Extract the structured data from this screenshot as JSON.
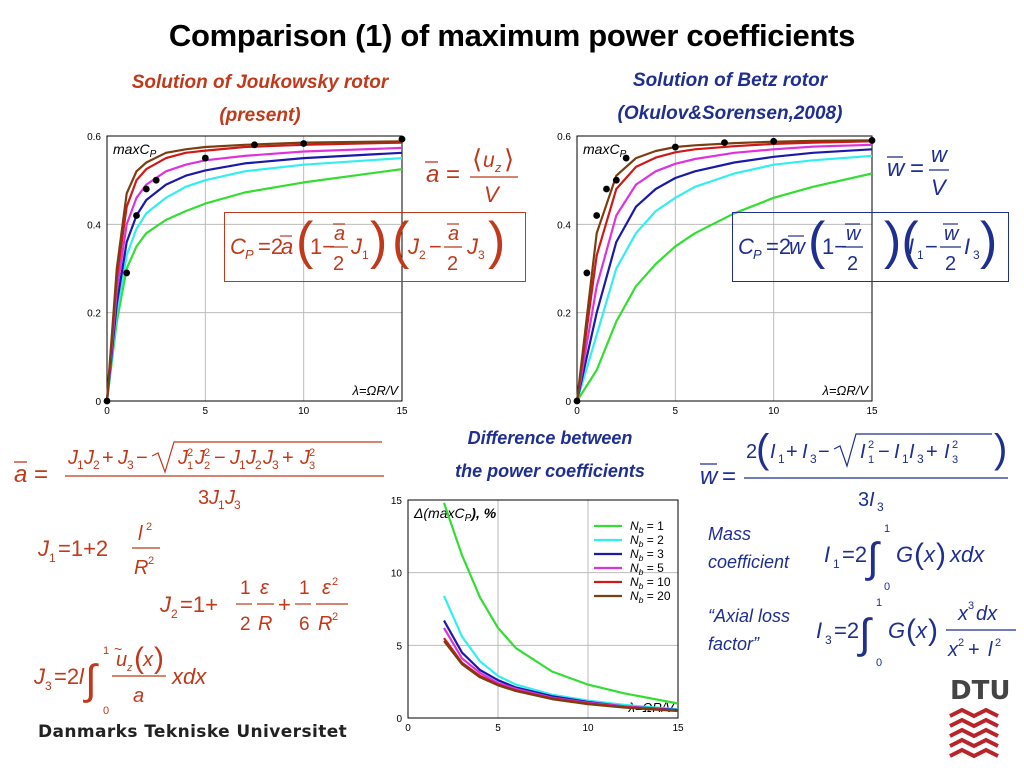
{
  "slide": {
    "title": "Comparison (1) of maximum power coefficients",
    "left_caption_line1": "Solution of Joukowsky rotor",
    "left_caption_line2": "(present)",
    "right_caption_line1": "Solution of Betz rotor",
    "right_caption_line2": "(Okulov&Sorensen,2008)",
    "diff_caption_line1": "Difference between",
    "diff_caption_line2": "the power coefficients",
    "mass_line1": "Mass",
    "mass_line2": "coefficient",
    "axial_line1": "“Axial loss",
    "axial_line2": "factor”",
    "university": "Danmarks Tekniske Universitet",
    "logo": "DTU"
  },
  "legend": [
    "N_b = 1",
    "N_b = 2",
    "N_b = 3",
    "N_b = 5",
    "N_b = 10",
    "N_b = 20"
  ],
  "colors": {
    "title": "#000000",
    "caption_red": "#c0391b",
    "caption_blue": "#1f2f8f",
    "formula_red": "#c0391b",
    "formula_blue": "#1f2f8f",
    "series": [
      "#33dd33",
      "#33eeee",
      "#1a1aaa",
      "#dd33dd",
      "#d01818",
      "#7a3f10"
    ]
  },
  "chart_data": [
    {
      "type": "line",
      "title": "Solution of Joukowsky rotor (present)",
      "inner_label": "maxC_P",
      "xlabel": "λ=ΩR/V",
      "xlim": [
        0,
        15
      ],
      "ylim": [
        0,
        0.6
      ],
      "xticks": [
        0,
        5,
        10,
        15
      ],
      "yticks": [
        0,
        0.2,
        0.4,
        0.6
      ],
      "grid": true,
      "legend_position": "bottom-right",
      "series": [
        {
          "name": "N_b = 1",
          "x": [
            0,
            0.5,
            1,
            1.5,
            2,
            3,
            4,
            5,
            7,
            10,
            15
          ],
          "y": [
            0,
            0.18,
            0.3,
            0.35,
            0.38,
            0.41,
            0.43,
            0.447,
            0.472,
            0.495,
            0.525
          ]
        },
        {
          "name": "N_b = 2",
          "x": [
            0,
            0.5,
            1,
            1.5,
            2,
            3,
            4,
            5,
            7,
            10,
            15
          ],
          "y": [
            0,
            0.2,
            0.33,
            0.39,
            0.425,
            0.46,
            0.485,
            0.5,
            0.52,
            0.535,
            0.55
          ]
        },
        {
          "name": "N_b = 3",
          "x": [
            0,
            0.5,
            1,
            1.5,
            2,
            3,
            4,
            5,
            7,
            10,
            15
          ],
          "y": [
            0,
            0.22,
            0.36,
            0.42,
            0.455,
            0.49,
            0.51,
            0.522,
            0.538,
            0.55,
            0.562
          ]
        },
        {
          "name": "N_b = 5",
          "x": [
            0,
            0.5,
            1,
            1.5,
            2,
            3,
            4,
            5,
            7,
            10,
            15
          ],
          "y": [
            0,
            0.25,
            0.4,
            0.46,
            0.49,
            0.52,
            0.535,
            0.545,
            0.555,
            0.565,
            0.573
          ]
        },
        {
          "name": "N_b = 10",
          "x": [
            0,
            0.5,
            1,
            1.5,
            2,
            3,
            4,
            5,
            7,
            10,
            15
          ],
          "y": [
            0,
            0.28,
            0.44,
            0.5,
            0.525,
            0.55,
            0.562,
            0.567,
            0.575,
            0.58,
            0.585
          ]
        },
        {
          "name": "N_b = 20",
          "x": [
            0,
            0.5,
            1,
            1.5,
            2,
            3,
            4,
            5,
            7,
            10,
            15
          ],
          "y": [
            0,
            0.3,
            0.47,
            0.52,
            0.54,
            0.562,
            0.57,
            0.575,
            0.58,
            0.585,
            0.588
          ]
        },
        {
          "name": "",
          "markers": true,
          "x": [
            0,
            1,
            1.5,
            2,
            2.5,
            5,
            7.5,
            10,
            15
          ],
          "y": [
            0,
            0.29,
            0.42,
            0.48,
            0.5,
            0.55,
            0.58,
            0.583,
            0.593
          ]
        }
      ]
    },
    {
      "type": "line",
      "title": "Solution of Betz rotor (Okulov&Sorensen,2008)",
      "inner_label": "maxC_P",
      "xlabel": "λ=ΩR/V",
      "xlim": [
        0,
        15
      ],
      "ylim": [
        0,
        0.6
      ],
      "xticks": [
        0,
        5,
        10,
        15
      ],
      "yticks": [
        0,
        0.2,
        0.4,
        0.6
      ],
      "grid": true,
      "series": [
        {
          "name": "N_b = 1",
          "x": [
            0,
            1,
            2,
            3,
            4,
            5,
            6,
            8,
            10,
            12,
            15
          ],
          "y": [
            0,
            0.07,
            0.18,
            0.26,
            0.31,
            0.35,
            0.38,
            0.425,
            0.46,
            0.485,
            0.515
          ]
        },
        {
          "name": "N_b = 2",
          "x": [
            0,
            1,
            2,
            3,
            4,
            5,
            6,
            8,
            10,
            12,
            15
          ],
          "y": [
            0,
            0.15,
            0.3,
            0.38,
            0.43,
            0.46,
            0.485,
            0.515,
            0.535,
            0.545,
            0.555
          ]
        },
        {
          "name": "N_b = 3",
          "x": [
            0,
            1,
            2,
            3,
            4,
            5,
            6,
            8,
            10,
            12,
            15
          ],
          "y": [
            0,
            0.2,
            0.36,
            0.44,
            0.48,
            0.505,
            0.52,
            0.54,
            0.553,
            0.562,
            0.57
          ]
        },
        {
          "name": "N_b = 5",
          "x": [
            0,
            1,
            2,
            3,
            4,
            5,
            6,
            8,
            10,
            12,
            15
          ],
          "y": [
            0,
            0.26,
            0.42,
            0.49,
            0.52,
            0.537,
            0.548,
            0.562,
            0.57,
            0.576,
            0.58
          ]
        },
        {
          "name": "N_b = 10",
          "x": [
            0,
            1,
            2,
            3,
            4,
            5,
            6,
            8,
            10,
            12,
            15
          ],
          "y": [
            0,
            0.33,
            0.48,
            0.53,
            0.551,
            0.563,
            0.57,
            0.577,
            0.582,
            0.585,
            0.588
          ]
        },
        {
          "name": "N_b = 20",
          "x": [
            0,
            1,
            2,
            3,
            4,
            5,
            6,
            8,
            10,
            12,
            15
          ],
          "y": [
            0,
            0.38,
            0.51,
            0.55,
            0.566,
            0.575,
            0.579,
            0.584,
            0.587,
            0.589,
            0.59
          ]
        },
        {
          "name": "",
          "markers": true,
          "x": [
            0,
            0.5,
            1,
            1.5,
            2,
            2.5,
            5,
            7.5,
            10,
            15
          ],
          "y": [
            0,
            0.29,
            0.42,
            0.48,
            0.5,
            0.55,
            0.575,
            0.585,
            0.588,
            0.59
          ]
        }
      ]
    },
    {
      "type": "line",
      "title": "Difference between the power coefficients",
      "inner_label": "Δ(maxC_P), %",
      "xlabel": "λ=ΩR/V",
      "xlim": [
        0,
        15
      ],
      "ylim": [
        0,
        15
      ],
      "xticks": [
        0,
        5,
        10,
        15
      ],
      "yticks": [
        0,
        5,
        10,
        15
      ],
      "grid": true,
      "legend_position": "top-right",
      "series": [
        {
          "name": "N_b = 1",
          "x": [
            2,
            3,
            4,
            5,
            6,
            8,
            10,
            12,
            15
          ],
          "y": [
            14.8,
            11.2,
            8.3,
            6.2,
            4.8,
            3.2,
            2.3,
            1.7,
            1.0
          ]
        },
        {
          "name": "N_b = 2",
          "x": [
            2,
            3,
            4,
            5,
            6,
            8,
            10,
            12,
            15
          ],
          "y": [
            8.4,
            5.6,
            3.9,
            2.9,
            2.3,
            1.6,
            1.2,
            0.9,
            0.6
          ]
        },
        {
          "name": "N_b = 3",
          "x": [
            2,
            3,
            4,
            5,
            6,
            8,
            10,
            12,
            15
          ],
          "y": [
            6.7,
            4.5,
            3.3,
            2.6,
            2.1,
            1.5,
            1.1,
            0.8,
            0.55
          ]
        },
        {
          "name": "N_b = 5",
          "x": [
            2,
            3,
            4,
            5,
            6,
            8,
            10,
            12,
            15
          ],
          "y": [
            6.2,
            4.1,
            3.1,
            2.4,
            2.0,
            1.4,
            1.05,
            0.8,
            0.5
          ]
        },
        {
          "name": "N_b = 10",
          "x": [
            2,
            3,
            4,
            5,
            6,
            8,
            10,
            12,
            15
          ],
          "y": [
            5.5,
            3.8,
            2.9,
            2.3,
            1.9,
            1.35,
            1.0,
            0.75,
            0.5
          ]
        },
        {
          "name": "N_b = 20",
          "x": [
            2,
            3,
            4,
            5,
            6,
            8,
            10,
            12,
            15
          ],
          "y": [
            5.3,
            3.7,
            2.8,
            2.25,
            1.85,
            1.3,
            0.95,
            0.72,
            0.48
          ]
        }
      ]
    }
  ]
}
